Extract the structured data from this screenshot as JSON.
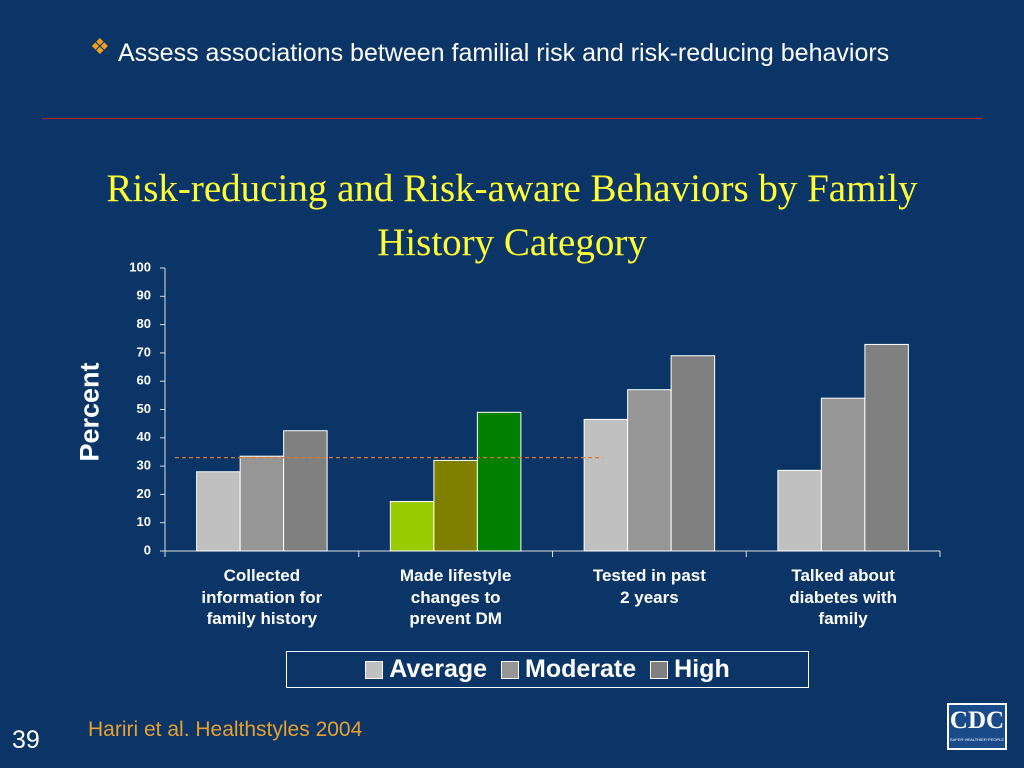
{
  "header": {
    "bullet_text": "Assess associations between familial risk and risk-reducing behaviors"
  },
  "chart_data": {
    "type": "bar",
    "title": "Risk-reducing and Risk-aware Behaviors by Family History Category",
    "y_label": "Percent",
    "categories": [
      "Collected\ninformation for\nfamily history",
      "Made lifestyle\nchanges to\nprevent DM",
      "Tested in past\n2 years",
      "Talked about\ndiabetes with\nfamily"
    ],
    "series": [
      {
        "name": "Average",
        "color": "#c0c0c0",
        "colors": [
          "#c0c0c0",
          "#99cc00",
          "#c0c0c0",
          "#c0c0c0"
        ],
        "values": [
          28,
          17.5,
          46.5,
          28.5
        ]
      },
      {
        "name": "Moderate",
        "color": "#969696",
        "colors": [
          "#969696",
          "#808000",
          "#969696",
          "#969696"
        ],
        "values": [
          33.5,
          32,
          57,
          54
        ]
      },
      {
        "name": "High",
        "color": "#808080",
        "colors": [
          "#808080",
          "#008000",
          "#808080",
          "#808080"
        ],
        "values": [
          42.5,
          49,
          69,
          73
        ]
      }
    ],
    "ylim": [
      0,
      100
    ],
    "yticks": [
      0,
      10,
      20,
      30,
      40,
      50,
      60,
      70,
      80,
      90,
      100
    ],
    "reference_line": {
      "value": 33,
      "color": "#d9782a"
    },
    "legend": "bottom"
  },
  "footer": {
    "source": "Hariri et al. Healthstyles 2004",
    "slide_number": 39
  },
  "logo": {
    "text": "CDC",
    "tagline": "SAFER·HEALTHIER·PEOPLE"
  }
}
